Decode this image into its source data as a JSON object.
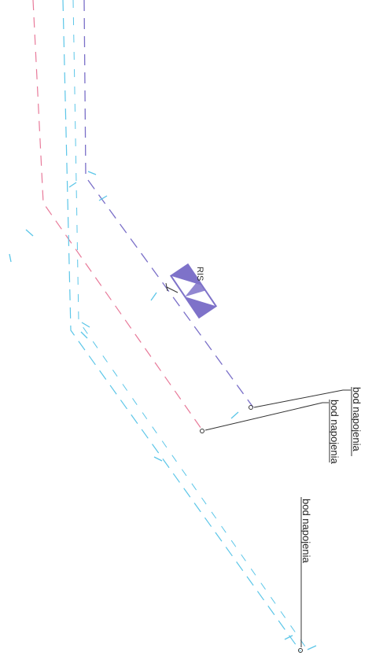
{
  "colors": {
    "background": "#ffffff",
    "purple_line": "#7a6fc8",
    "pink_line": "#e87a9a",
    "cyan_line": "#5cc6e8",
    "ris_symbol": "#7e72c9",
    "leader": "#333333",
    "text": "#222222"
  },
  "labels": {
    "ris": "RIS",
    "feed_point_1": "bod napojenia",
    "feed_point_2": "bod napojenia",
    "feed_point_3": "bod napojenia"
  }
}
